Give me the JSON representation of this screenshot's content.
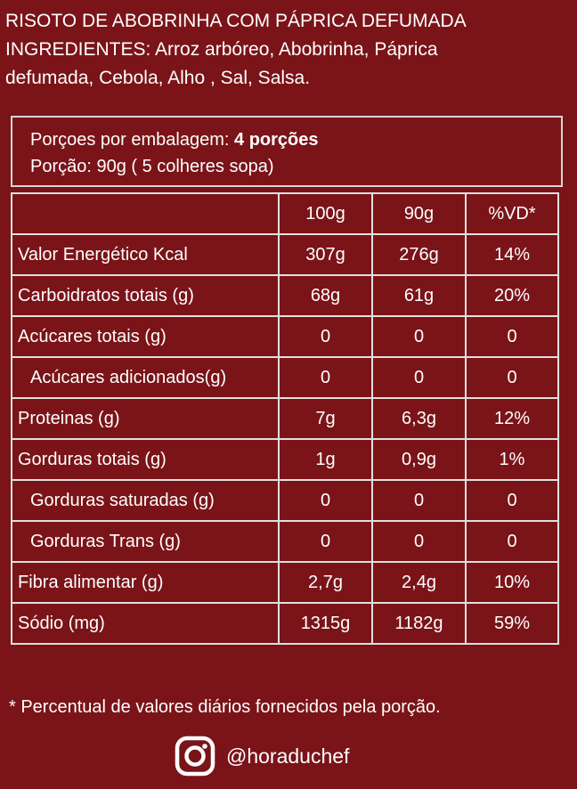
{
  "header": {
    "line1": "RISOTO DE ABOBRINHA COM PÁPRICA DEFUMADA",
    "line2": "INGREDIENTES: Arroz arbóreo, Abobrinha, Páprica",
    "line3": "defumada, Cebola, Alho , Sal, Salsa."
  },
  "portion": {
    "servings_label": "Porçoes por embalagem: ",
    "servings_value": "4 porções",
    "size": "Porção: 90g ( 5 colheres sopa)"
  },
  "table": {
    "columns": [
      "",
      "100g",
      "90g",
      "%VD*"
    ],
    "rows": [
      {
        "label": "Valor Energético Kcal",
        "c100": "307g",
        "c90": "276g",
        "vd": "14%"
      },
      {
        "label": "Carboidratos totais (g)",
        "c100": "68g",
        "c90": "61g",
        "vd": "20%"
      },
      {
        "label": "Acúcares totais (g)",
        "c100": "0",
        "c90": "0",
        "vd": "0"
      },
      {
        "label": "Acúcares adicionados(g)",
        "c100": "0",
        "c90": "0",
        "vd": "0"
      },
      {
        "label": "Proteinas (g)",
        "c100": "7g",
        "c90": "6,3g",
        "vd": "12%"
      },
      {
        "label": "Gorduras totais (g)",
        "c100": "1g",
        "c90": "0,9g",
        "vd": "1%"
      },
      {
        "label": "Gorduras saturadas (g)",
        "c100": "0",
        "c90": "0",
        "vd": "0"
      },
      {
        "label": "Gorduras Trans (g)",
        "c100": "0",
        "c90": "0",
        "vd": "0"
      },
      {
        "label": "Fibra alimentar (g)",
        "c100": "2,7g",
        "c90": "2,4g",
        "vd": "10%"
      },
      {
        "label": "Sódio (mg)",
        "c100": "1315g",
        "c90": "1182g",
        "vd": "59%"
      }
    ]
  },
  "footnote": "* Percentual de valores diários fornecidos pela porção.",
  "social": {
    "icon": "instagram-icon",
    "handle": "@horaduchef"
  },
  "colors": {
    "background": "#7a1419",
    "text": "#ffffff",
    "border": "#e0e0e0"
  }
}
